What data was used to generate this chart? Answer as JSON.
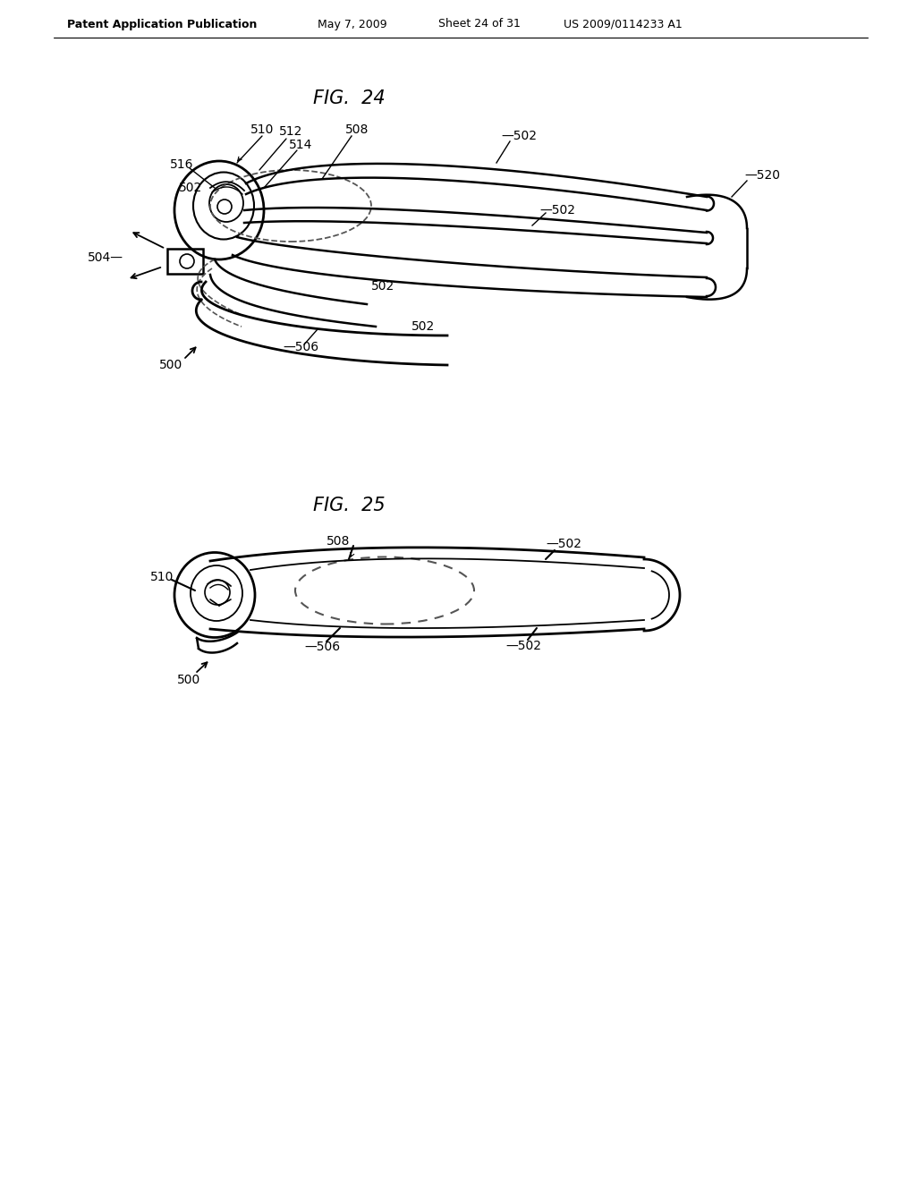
{
  "background_color": "#ffffff",
  "header_text": "Patent Application Publication",
  "header_date": "May 7, 2009",
  "header_sheet": "Sheet 24 of 31",
  "header_patent": "US 2009/0114233 A1",
  "fig24_title": "FIG.  24",
  "fig25_title": "FIG.  25",
  "text_color": "#000000",
  "line_color": "#000000",
  "dashed_color": "#555555"
}
